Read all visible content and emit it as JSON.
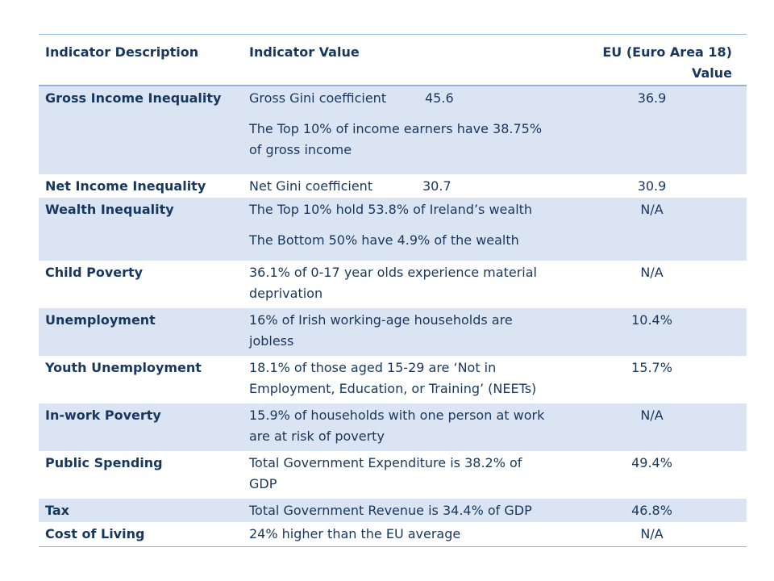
{
  "header": {
    "col1": "Indicator Description",
    "col2": "Indicator Value",
    "col3": "EU (Euro Area 18) Value"
  },
  "rows": [
    {
      "description": "Gross Income Inequality",
      "gini_label": "Gross Gini coefficient",
      "gini_value": "45.6",
      "value_line2": "The Top 10% of income earners have 38.75% of gross income",
      "eu": "36.9"
    },
    {
      "description": "Net Income Inequality",
      "gini_label": "Net Gini coefficient",
      "gini_value": "30.7",
      "eu": "30.9"
    },
    {
      "description": "Wealth Inequality",
      "value_line1": "The Top 10% hold 53.8% of Ireland’s wealth",
      "value_line2": "The Bottom 50% have 4.9% of the wealth",
      "eu": "N/A"
    },
    {
      "description": "Child Poverty",
      "value": "36.1% of 0-17 year olds experience material deprivation",
      "eu": "N/A"
    },
    {
      "description": "Unemployment",
      "value": "16% of Irish working-age households are jobless",
      "eu": "10.4%"
    },
    {
      "description": "Youth Unemployment",
      "value": "18.1% of those aged 15-29 are ‘Not in Employment, Education, or Training’ (NEETs)",
      "eu": "15.7%"
    },
    {
      "description": "In-work Poverty",
      "value": "15.9% of households with one person at work are at risk of poverty",
      "eu": "N/A"
    },
    {
      "description": "Public Spending",
      "value": "Total Government Expenditure is 38.2% of GDP",
      "eu": "49.4%"
    },
    {
      "description": "Tax",
      "value": "Total Government Revenue is 34.4% of GDP",
      "eu": "46.8%"
    },
    {
      "description": "Cost of Living",
      "value": "24% higher than the EU average",
      "eu": "N/A"
    }
  ]
}
